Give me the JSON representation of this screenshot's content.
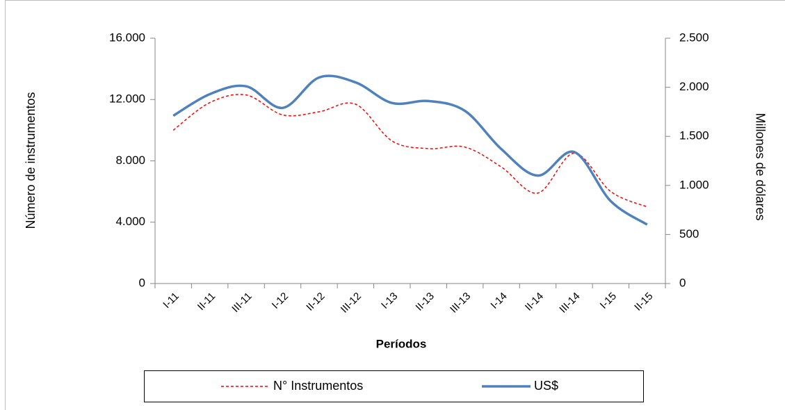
{
  "chart_data": {
    "type": "line",
    "x_label": "Períodos",
    "y_label": "Número de instrumentos",
    "y2_label": "Millones de dólares",
    "categories": [
      "I-11",
      "II-11",
      "III-11",
      "I-12",
      "II-12",
      "III-12",
      "I-13",
      "II-13",
      "III-13",
      "I-14",
      "II-14",
      "III-14",
      "I-15",
      "II-15"
    ],
    "series": [
      {
        "name": "N° Instrumentos",
        "color": "#ff0000",
        "dashed": true,
        "values": [
          10000,
          11800,
          12300,
          11000,
          11200,
          11700,
          9300,
          8800,
          8900,
          7600,
          5900,
          8500,
          6000,
          5000
        ]
      },
      {
        "name": "US$",
        "color": "#4f81bd",
        "axis": "y2",
        "values": [
          1710,
          1930,
          2010,
          1790,
          2100,
          2050,
          1840,
          1860,
          1760,
          1370,
          1100,
          1340,
          840,
          600
        ]
      }
    ],
    "ylim": [
      0,
      16000
    ],
    "yticks": [
      0,
      {
        "value": 4000,
        "label": "4.000"
      },
      {
        "value": 8000,
        "label": "8.000"
      },
      {
        "value": 12000,
        "label": "12.000"
      },
      {
        "value": 16000,
        "label": "16.000"
      }
    ],
    "y2lim": [
      0,
      2500
    ],
    "y2ticks": [
      0,
      500,
      {
        "value": 1000,
        "label": "1.000"
      },
      {
        "value": 1500,
        "label": "1.500"
      },
      {
        "value": 2000,
        "label": "2.000"
      },
      {
        "value": 2500,
        "label": "2.500"
      }
    ],
    "grid": false,
    "legend": "bottom"
  }
}
